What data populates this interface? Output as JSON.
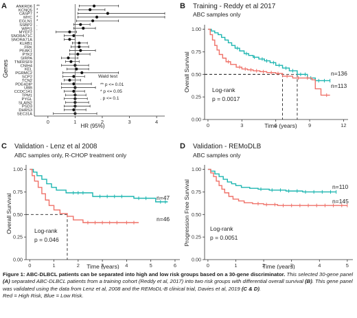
{
  "panels": {
    "a": {
      "letter": "A",
      "y_label": "Genes",
      "x_label": "HR (95%)",
      "legend_title": "Wald test",
      "legend_items": [
        "** p <= 0.01",
        "* p <= 0.05",
        ". p <= 0.1"
      ]
    },
    "b": {
      "letter": "B",
      "title": "Training - Reddy et al 2017",
      "subtitle": "ABC samples only",
      "y_label": "Overall Survival",
      "x_label": "Time (years)",
      "logrank_label": "Log-rank",
      "logrank_p": "p = 0.0017",
      "n_blue": "n=136",
      "n_red": "n=113"
    },
    "c": {
      "letter": "C",
      "title": "Validation - Lenz et al 2008",
      "subtitle": "ABC samples only, R-CHOP treatment only",
      "y_label": "Overall Survival",
      "x_label": "Time (years)",
      "logrank_label": "Log-rank",
      "logrank_p": "p = 0.046",
      "n_blue": "n=47",
      "n_red": "n=46"
    },
    "d": {
      "letter": "D",
      "title": "Validation - REMoDLB",
      "subtitle": "ABC samples only",
      "y_label": "Progression Free Survival",
      "x_label": "Time (years)",
      "logrank_label": "Log-rank",
      "logrank_p": "p = 0.0051",
      "n_blue": "n=110",
      "n_red": "n=145"
    }
  },
  "colors": {
    "blue": "#1cb5b0",
    "red": "#ef7168"
  },
  "chart_data": [
    {
      "id": "A",
      "type": "forest",
      "x_label": "HR (95%)",
      "xlim": [
        -0.5,
        4.3
      ],
      "x_ticks": [
        0,
        1,
        2,
        3,
        4
      ],
      "reference_line": 1,
      "rows": [
        {
          "gene": "ANKRD6",
          "hr": 1.7,
          "lo": 1.15,
          "hi": 2.6,
          "sig": "**"
        },
        {
          "gene": "KCNQ5",
          "hr": 1.55,
          "lo": 1.12,
          "hi": 2.1,
          "sig": "*"
        },
        {
          "gene": "CASP7",
          "hr": 2.2,
          "lo": 1.1,
          "hi": 4.3,
          "sig": "*"
        },
        {
          "gene": "MYC",
          "hr": 1.8,
          "lo": 1.1,
          "hi": 4.3,
          "sig": "*"
        },
        {
          "gene": "EGLN1",
          "hr": 1.65,
          "lo": 1.05,
          "hi": 2.6,
          "sig": "*"
        },
        {
          "gene": "SSBP2",
          "hr": 1.2,
          "lo": 0.95,
          "hi": 1.55,
          "sig": "."
        },
        {
          "gene": "WIPI1",
          "hr": 1.3,
          "lo": 0.95,
          "hi": 1.75,
          "sig": "."
        },
        {
          "gene": "MYEF2",
          "hr": 0.8,
          "lo": 0.3,
          "hi": 1.05,
          "sig": ""
        },
        {
          "gene": "SNORA71C",
          "hr": 0.95,
          "lo": 0.6,
          "hi": 1.3,
          "sig": ""
        },
        {
          "gene": "SNORA71A",
          "hr": 0.8,
          "lo": 0.6,
          "hi": 1.0,
          "sig": ""
        },
        {
          "gene": "KLRB1",
          "hr": 1.15,
          "lo": 0.9,
          "hi": 1.45,
          "sig": ""
        },
        {
          "gene": "FRK",
          "hr": 1.15,
          "lo": 0.85,
          "hi": 1.5,
          "sig": ""
        },
        {
          "gene": "PEAK1",
          "hr": 1.2,
          "lo": 0.8,
          "hi": 1.75,
          "sig": ""
        },
        {
          "gene": "PTK2",
          "hr": 1.1,
          "lo": 0.8,
          "hi": 1.55,
          "sig": ""
        },
        {
          "gene": "SIRPA",
          "hr": 0.75,
          "lo": 0.5,
          "hi": 1.1,
          "sig": ""
        },
        {
          "gene": "TNFRSF9",
          "hr": 0.85,
          "lo": 0.65,
          "hi": 1.15,
          "sig": ""
        },
        {
          "gene": "CNIH4",
          "hr": 1.0,
          "lo": 0.5,
          "hi": 1.5,
          "sig": ""
        },
        {
          "gene": "KEL",
          "hr": 1.05,
          "lo": 0.7,
          "hi": 1.5,
          "sig": ""
        },
        {
          "gene": "PGRMC2",
          "hr": 1.25,
          "lo": 0.55,
          "hi": 2.6,
          "sig": ""
        },
        {
          "gene": "SCP2",
          "hr": 0.95,
          "lo": 0.55,
          "hi": 1.35,
          "sig": ""
        },
        {
          "gene": "TCN2",
          "hr": 0.8,
          "lo": 0.6,
          "hi": 1.2,
          "sig": ""
        },
        {
          "gene": "PDE4DIP",
          "hr": 0.95,
          "lo": 0.5,
          "hi": 1.6,
          "sig": ""
        },
        {
          "gene": "UBB",
          "hr": 1.0,
          "lo": 0.5,
          "hi": 1.75,
          "sig": ""
        },
        {
          "gene": "CCDC141",
          "hr": 0.95,
          "lo": 0.6,
          "hi": 1.35,
          "sig": ""
        },
        {
          "gene": "TPM1",
          "hr": 1.0,
          "lo": 0.65,
          "hi": 1.4,
          "sig": ""
        },
        {
          "gene": "PYGL",
          "hr": 1.0,
          "lo": 0.6,
          "hi": 1.45,
          "sig": ""
        },
        {
          "gene": "SLAIN2",
          "hr": 1.0,
          "lo": 0.65,
          "hi": 1.5,
          "sig": ""
        },
        {
          "gene": "PSD3",
          "hr": 1.0,
          "lo": 0.6,
          "hi": 1.55,
          "sig": ""
        },
        {
          "gene": "DHRS3",
          "hr": 0.95,
          "lo": 0.6,
          "hi": 1.4,
          "sig": ""
        },
        {
          "gene": "SEC31A",
          "hr": 1.0,
          "lo": 0.2,
          "hi": 1.8,
          "sig": ""
        }
      ]
    },
    {
      "id": "B",
      "type": "line",
      "title": "Training - Reddy et al 2017",
      "subtitle": "ABC samples only",
      "xlabel": "Time (years)",
      "ylabel": "Overall Survival",
      "xlim": [
        -0.3,
        12.4
      ],
      "ylim": [
        0,
        1.05
      ],
      "x_ticks": [
        0,
        3,
        6,
        9,
        12
      ],
      "y_ticks": [
        0,
        0.25,
        0.5,
        0.75,
        1.0
      ],
      "y_tick_labels": [
        "0.00",
        "0.25",
        "0.50",
        "0.75",
        "1.00"
      ],
      "median_lines": [
        {
          "x": 6.6,
          "y": 0.5
        },
        {
          "x": 7.9,
          "y": 0.5
        }
      ],
      "series": [
        {
          "color": "blue",
          "n": "n=136",
          "steps": [
            [
              0,
              1
            ],
            [
              0.3,
              0.98
            ],
            [
              0.6,
              0.96
            ],
            [
              0.9,
              0.94
            ],
            [
              1.2,
              0.91
            ],
            [
              1.5,
              0.88
            ],
            [
              1.8,
              0.85
            ],
            [
              2.1,
              0.82
            ],
            [
              2.4,
              0.79
            ],
            [
              2.8,
              0.76
            ],
            [
              3.2,
              0.73
            ],
            [
              3.6,
              0.71
            ],
            [
              4,
              0.69
            ],
            [
              4.5,
              0.67
            ],
            [
              5,
              0.65
            ],
            [
              5.5,
              0.63
            ],
            [
              6,
              0.6
            ],
            [
              6.6,
              0.57
            ],
            [
              7.2,
              0.54
            ],
            [
              7.9,
              0.5
            ],
            [
              8.8,
              0.46
            ],
            [
              9.5,
              0.43
            ],
            [
              10.8,
              0.43
            ]
          ],
          "censor": [
            2.6,
            3.4,
            4.1,
            4.8,
            5.2,
            5.8,
            6.3,
            6.9,
            7.5,
            8.2,
            8.6,
            9.1,
            9.8,
            10.3,
            10.8
          ]
        },
        {
          "color": "red",
          "n": "n=113",
          "steps": [
            [
              0,
              1
            ],
            [
              0.2,
              0.94
            ],
            [
              0.4,
              0.88
            ],
            [
              0.6,
              0.82
            ],
            [
              0.8,
              0.77
            ],
            [
              1,
              0.72
            ],
            [
              1.3,
              0.68
            ],
            [
              1.6,
              0.64
            ],
            [
              2,
              0.61
            ],
            [
              2.5,
              0.58
            ],
            [
              3,
              0.56
            ],
            [
              3.5,
              0.55
            ],
            [
              4,
              0.54
            ],
            [
              4.6,
              0.53
            ],
            [
              5.2,
              0.52
            ],
            [
              6,
              0.51
            ],
            [
              6.6,
              0.48
            ],
            [
              7.5,
              0.46
            ],
            [
              9.2,
              0.44
            ],
            [
              9.5,
              0.34
            ],
            [
              10,
              0.27
            ],
            [
              10.8,
              0.27
            ]
          ],
          "censor": [
            1.8,
            2.8,
            3.3,
            3.8,
            4.3,
            4.9,
            5.6,
            6.2,
            7,
            8,
            8.8,
            10.5
          ]
        }
      ]
    },
    {
      "id": "C",
      "type": "line",
      "title": "Validation - Lenz et al 2008",
      "subtitle": "ABC samples only, R-CHOP treatment only",
      "xlabel": "Time (years)",
      "ylabel": "Overall Survival",
      "xlim": [
        -0.15,
        6.2
      ],
      "ylim": [
        0,
        1.05
      ],
      "x_ticks": [
        0,
        1,
        2,
        3,
        4,
        5,
        6
      ],
      "y_ticks": [
        0,
        0.25,
        0.5,
        0.75,
        1.0
      ],
      "y_tick_labels": [
        "0.00",
        "0.25",
        "0.50",
        "0.75",
        "1.00"
      ],
      "median_lines": [
        {
          "x": 1.55,
          "y": 0.5
        }
      ],
      "series": [
        {
          "color": "blue",
          "n": "n=47",
          "steps": [
            [
              0,
              1
            ],
            [
              0.15,
              0.97
            ],
            [
              0.3,
              0.93
            ],
            [
              0.5,
              0.89
            ],
            [
              0.7,
              0.84
            ],
            [
              0.9,
              0.8
            ],
            [
              1.1,
              0.77
            ],
            [
              1.5,
              0.74
            ],
            [
              2.4,
              0.74
            ],
            [
              2.6,
              0.7
            ],
            [
              4.1,
              0.7
            ],
            [
              4.3,
              0.68
            ],
            [
              5,
              0.68
            ],
            [
              5.2,
              0.64
            ],
            [
              5.7,
              0.64
            ]
          ],
          "censor": [
            1.8,
            2,
            2.2,
            2.9,
            3.2,
            3.5,
            3.8,
            4.5,
            4.8,
            5.4,
            5.6
          ]
        },
        {
          "color": "red",
          "n": "n=46",
          "steps": [
            [
              0,
              1
            ],
            [
              0.1,
              0.93
            ],
            [
              0.2,
              0.87
            ],
            [
              0.35,
              0.8
            ],
            [
              0.5,
              0.73
            ],
            [
              0.65,
              0.66
            ],
            [
              0.8,
              0.6
            ],
            [
              1,
              0.55
            ],
            [
              1.25,
              0.51
            ],
            [
              1.55,
              0.48
            ],
            [
              1.8,
              0.44
            ],
            [
              2.2,
              0.41
            ],
            [
              4.5,
              0.41
            ]
          ],
          "censor": [
            2.4,
            2.7,
            3,
            3.3,
            3.6,
            4,
            4.3
          ]
        }
      ]
    },
    {
      "id": "D",
      "type": "line",
      "title": "Validation - REMoDLB",
      "subtitle": "ABC samples only",
      "xlabel": "Time (years)",
      "ylabel": "Progression Free Survival",
      "xlim": [
        -0.12,
        5.2
      ],
      "ylim": [
        0,
        1.05
      ],
      "x_ticks": [
        0,
        1,
        2,
        3,
        4,
        5
      ],
      "y_ticks": [
        0,
        0.25,
        0.5,
        0.75,
        1.0
      ],
      "y_tick_labels": [
        "0.00",
        "0.25",
        "0.50",
        "0.75",
        "1.00"
      ],
      "median_lines": [],
      "series": [
        {
          "color": "blue",
          "n": "n=110",
          "steps": [
            [
              0,
              1
            ],
            [
              0.1,
              0.98
            ],
            [
              0.25,
              0.95
            ],
            [
              0.4,
              0.92
            ],
            [
              0.55,
              0.89
            ],
            [
              0.7,
              0.86
            ],
            [
              0.85,
              0.84
            ],
            [
              1,
              0.82
            ],
            [
              1.2,
              0.8
            ],
            [
              1.5,
              0.79
            ],
            [
              1.8,
              0.78
            ],
            [
              2.2,
              0.77
            ],
            [
              2.8,
              0.76
            ],
            [
              3.4,
              0.75
            ],
            [
              4.6,
              0.75
            ]
          ],
          "censor": [
            1.9,
            2.3,
            2.6,
            2.9,
            3.2,
            3.5,
            3.8,
            4.1,
            4.4,
            4.6
          ]
        },
        {
          "color": "red",
          "n": "n=145",
          "steps": [
            [
              0,
              1
            ],
            [
              0.1,
              0.96
            ],
            [
              0.2,
              0.92
            ],
            [
              0.3,
              0.87
            ],
            [
              0.4,
              0.82
            ],
            [
              0.5,
              0.78
            ],
            [
              0.6,
              0.74
            ],
            [
              0.75,
              0.7
            ],
            [
              0.9,
              0.67
            ],
            [
              1.1,
              0.65
            ],
            [
              1.3,
              0.63
            ],
            [
              1.6,
              0.62
            ],
            [
              2,
              0.61
            ],
            [
              2.5,
              0.6
            ],
            [
              3.5,
              0.6
            ],
            [
              5,
              0.6
            ]
          ],
          "censor": [
            1.8,
            2.1,
            2.4,
            2.7,
            3,
            3.3,
            3.6,
            3.9,
            4.2,
            4.5,
            4.8,
            5
          ]
        }
      ]
    }
  ],
  "caption": {
    "lead": "Figure 1: ABC-DLBCL patients can be separated into high and low risk groups based on a 30-gene discriminator.",
    "s1": " This selected 30-gene panel ",
    "s1_a": "(A)",
    "s2": " separated ABC-DLBCL patients from a training cohort (Reddy et al, 2017) into two risk groups with differential overall survival ",
    "s2_b": "(B)",
    "s3": ". This gene panel was validated using the data from Lenz et al, 2008 and the REMoDL-B clinical trial, Davies et al, 2019 ",
    "s3_cd": "(C & D)",
    "s4": ".",
    "legend_line": "Red = High Risk, Blue = Low Risk."
  }
}
